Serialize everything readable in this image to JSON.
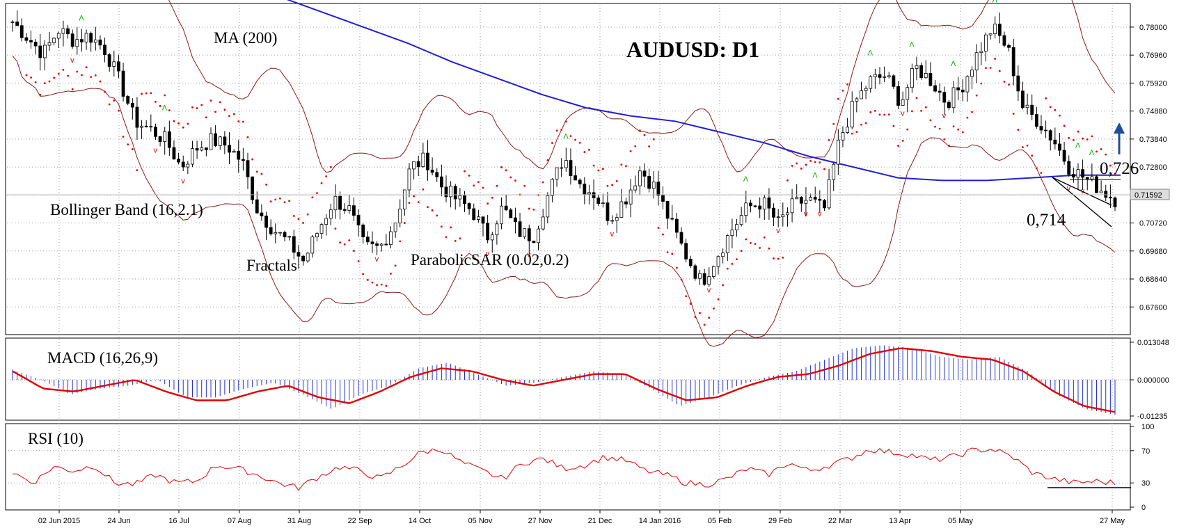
{
  "chart_title": "AUDUSD: D1",
  "annotations": {
    "ma": "MA (200)",
    "bollinger": "Bollinger Band (16,2.1)",
    "fractals": "Fractals",
    "sar": "ParabolicSAR (0.02,0.2)",
    "level_high": "0,726",
    "level_low": "0,714",
    "current_price": "0.71592"
  },
  "colors": {
    "background": "#ffffff",
    "candle_up": "#ffffff",
    "candle_down": "#000000",
    "ma": "#1f1fd6",
    "bollinger": "#8b1a1a",
    "sar": "#e00000",
    "fractal_up": "#00b000",
    "fractal_down": "#e00000",
    "macd_hist": "#2030e0",
    "macd_signal": "#e00000",
    "rsi": "#e00000",
    "grid": "#9a9a9a",
    "arrow": "#1f4e9c"
  },
  "chart_data": [
    {
      "panel": "price",
      "type": "candlestick",
      "title": "AUDUSD: D1",
      "ylim": [
        0.7665,
        0.788
      ],
      "y_ticks": [
        "0.78000",
        "0.76960",
        "0.75920",
        "0.74880",
        "0.73840",
        "0.72800",
        "0.71760",
        "0.70720",
        "0.69680",
        "0.68640",
        "0.67600"
      ],
      "x_ticks": [
        "02 Jun 2015",
        "24 Jun",
        "16 Jul",
        "07 Aug",
        "31 Aug",
        "22 Sep",
        "14 Oct",
        "05 Nov",
        "27 Nov",
        "21 Dec",
        "14 Jan 2016",
        "05 Feb",
        "29 Feb",
        "22 Mar",
        "13 Apr",
        "05 May",
        "27 May"
      ],
      "close_series_approx": [
        0.782,
        0.776,
        0.77,
        0.779,
        0.775,
        0.777,
        0.772,
        0.76,
        0.745,
        0.742,
        0.738,
        0.728,
        0.735,
        0.738,
        0.736,
        0.73,
        0.712,
        0.705,
        0.7,
        0.693,
        0.705,
        0.716,
        0.712,
        0.698,
        0.698,
        0.708,
        0.728,
        0.731,
        0.721,
        0.716,
        0.712,
        0.702,
        0.713,
        0.704,
        0.702,
        0.718,
        0.732,
        0.722,
        0.718,
        0.709,
        0.716,
        0.727,
        0.72,
        0.707,
        0.695,
        0.685,
        0.695,
        0.705,
        0.713,
        0.715,
        0.707,
        0.714,
        0.716,
        0.712,
        0.738,
        0.752,
        0.76,
        0.762,
        0.752,
        0.765,
        0.76,
        0.752,
        0.758,
        0.77,
        0.78,
        0.772,
        0.75,
        0.745,
        0.738,
        0.728,
        0.724,
        0.72,
        0.716
      ],
      "ma200_approx": [
        0.796,
        0.792,
        0.786,
        0.78,
        0.774,
        0.767,
        0.761,
        0.755,
        0.75,
        0.747,
        0.745,
        0.741,
        0.737,
        0.732,
        0.728,
        0.724,
        0.723,
        0.723,
        0.724,
        0.725,
        0.725
      ],
      "level_lines": [
        0.726,
        0.714
      ],
      "current_price": 0.71592
    },
    {
      "panel": "macd",
      "type": "bar",
      "title": "MACD (16,26,9)",
      "ylim": [
        -0.01235,
        0.01304
      ],
      "y_ticks": [
        "0.013048",
        "0.000000",
        "-0.01235"
      ],
      "histogram_approx": [
        0.0035,
        0.0,
        -0.005,
        -0.003,
        -0.002,
        0.0,
        -0.006,
        -0.006,
        -0.003,
        -0.001,
        -0.005,
        -0.01,
        -0.005,
        -0.002,
        0.004,
        0.006,
        0.002,
        -0.002,
        -0.001,
        0.001,
        0.003,
        0.002,
        -0.003,
        -0.009,
        -0.006,
        -0.002,
        0.001,
        0.003,
        0.007,
        0.011,
        0.012,
        0.011,
        0.008,
        0.007,
        0.008,
        0.003,
        -0.005,
        -0.01,
        -0.012
      ],
      "signal_approx": [
        0.003,
        -0.003,
        -0.004,
        -0.002,
        0.0,
        -0.004,
        -0.007,
        -0.007,
        -0.004,
        -0.002,
        -0.006,
        -0.008,
        -0.004,
        0.001,
        0.004,
        0.003,
        0.0,
        -0.002,
        0.0,
        0.002,
        0.002,
        -0.003,
        -0.007,
        -0.006,
        -0.002,
        0.001,
        0.002,
        0.005,
        0.009,
        0.011,
        0.01,
        0.008,
        0.007,
        0.003,
        -0.004,
        -0.009,
        -0.011
      ]
    },
    {
      "panel": "rsi",
      "type": "line",
      "title": "RSI (10)",
      "ylim": [
        0,
        100
      ],
      "y_ticks": [
        "100",
        "70",
        "30",
        "0"
      ],
      "rsi_approx": [
        43,
        30,
        50,
        45,
        52,
        30,
        28,
        40,
        30,
        32,
        52,
        48,
        40,
        30,
        24,
        38,
        50,
        45,
        35,
        50,
        68,
        72,
        55,
        45,
        35,
        55,
        60,
        48,
        52,
        62,
        58,
        45,
        40,
        30,
        28,
        35,
        48,
        40,
        55,
        45,
        52,
        60,
        72,
        68,
        65,
        58,
        62,
        70,
        72,
        62,
        42,
        35,
        30,
        32,
        30
      ],
      "support_level": 26
    }
  ]
}
